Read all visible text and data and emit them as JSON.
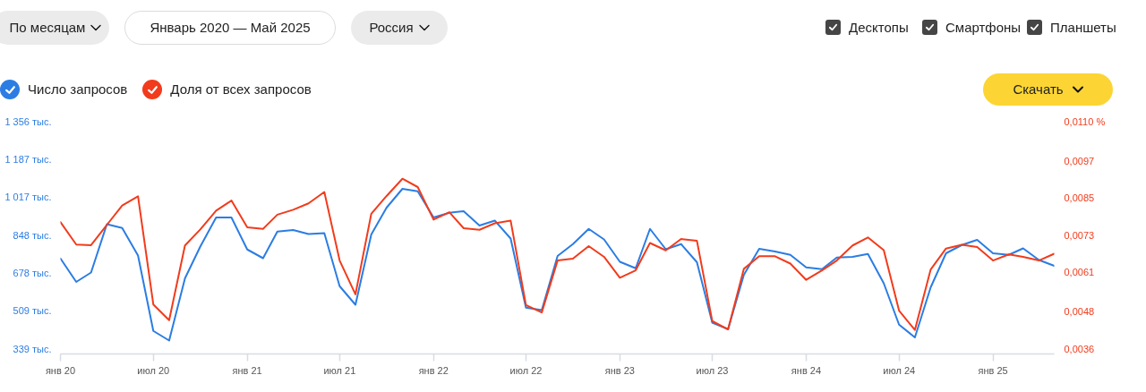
{
  "chart_data": {
    "type": "line",
    "x": [
      "2020-01",
      "2020-02",
      "2020-03",
      "2020-04",
      "2020-05",
      "2020-06",
      "2020-07",
      "2020-08",
      "2020-09",
      "2020-10",
      "2020-11",
      "2020-12",
      "2021-01",
      "2021-02",
      "2021-03",
      "2021-04",
      "2021-05",
      "2021-06",
      "2021-07",
      "2021-08",
      "2021-09",
      "2021-10",
      "2021-11",
      "2021-12",
      "2022-01",
      "2022-02",
      "2022-03",
      "2022-04",
      "2022-05",
      "2022-06",
      "2022-07",
      "2022-08",
      "2022-09",
      "2022-10",
      "2022-11",
      "2022-12",
      "2023-01",
      "2023-02",
      "2023-03",
      "2023-04",
      "2023-05",
      "2023-06",
      "2023-07",
      "2023-08",
      "2023-09",
      "2023-10",
      "2023-11",
      "2023-12",
      "2024-01",
      "2024-02",
      "2024-03",
      "2024-04",
      "2024-05",
      "2024-06",
      "2024-07",
      "2024-08",
      "2024-09",
      "2024-10",
      "2024-11",
      "2024-12",
      "2025-01",
      "2025-02",
      "2025-03",
      "2025-04",
      "2025-05"
    ],
    "series": [
      {
        "name": "Число запросов",
        "color": "#2b7de3",
        "values": [
          743,
          638,
          680,
          896,
          879,
          756,
          419,
          376,
          654,
          796,
          926,
          926,
          783,
          744,
          863,
          870,
          852,
          856,
          619,
          536,
          850,
          970,
          1054,
          1043,
          926,
          947,
          954,
          890,
          912,
          832,
          523,
          512,
          754,
          807,
          875,
          828,
          728,
          699,
          875,
          784,
          807,
          726,
          456,
          427,
          670,
          786,
          774,
          759,
          703,
          695,
          747,
          750,
          763,
          632,
          447,
          390,
          614,
          766,
          803,
          826,
          766,
          759,
          788,
          736,
          710
        ]
      },
      {
        "name": "Доля от всех запросов",
        "color": "#f23b1c",
        "axis": "y2",
        "values": [
          0.00772,
          0.00699,
          0.00697,
          0.00763,
          0.00826,
          0.00856,
          0.00504,
          0.00453,
          0.00696,
          0.00748,
          0.00809,
          0.00842,
          0.00755,
          0.0075,
          0.00796,
          0.00812,
          0.00833,
          0.0087,
          0.00647,
          0.00537,
          0.00799,
          0.00857,
          0.00913,
          0.00886,
          0.0078,
          0.00804,
          0.00752,
          0.00747,
          0.00768,
          0.00777,
          0.00502,
          0.00478,
          0.00647,
          0.00653,
          0.00694,
          0.00659,
          0.00591,
          0.00615,
          0.00704,
          0.0068,
          0.00717,
          0.00711,
          0.0045,
          0.00423,
          0.0062,
          0.00661,
          0.00661,
          0.00637,
          0.00584,
          0.00615,
          0.00647,
          0.00696,
          0.00722,
          0.00681,
          0.00484,
          0.00421,
          0.00618,
          0.00686,
          0.00698,
          0.00691,
          0.00647,
          0.00667,
          0.00659,
          0.00647,
          0.00669
        ]
      }
    ],
    "xlim": [
      "2020-01",
      "2025-05"
    ],
    "xticks": [
      {
        "value": "2020-01",
        "label": "янв 20"
      },
      {
        "value": "2020-07",
        "label": "июл 20"
      },
      {
        "value": "2021-01",
        "label": "янв 21"
      },
      {
        "value": "2021-07",
        "label": "июл 21"
      },
      {
        "value": "2022-01",
        "label": "янв 22"
      },
      {
        "value": "2022-07",
        "label": "июл 22"
      },
      {
        "value": "2023-01",
        "label": "янв 23"
      },
      {
        "value": "2023-07",
        "label": "июл 23"
      },
      {
        "value": "2024-01",
        "label": "янв 24"
      },
      {
        "value": "2024-07",
        "label": "июл 24"
      },
      {
        "value": "2025-01",
        "label": "янв 25"
      }
    ],
    "ylim": [
      316,
      1356
    ],
    "yticks": [
      {
        "value": 339,
        "label": "339 тыс."
      },
      {
        "value": 509,
        "label": "509 тыс."
      },
      {
        "value": 678,
        "label": "678 тыс."
      },
      {
        "value": 848,
        "label": "848 тыс."
      },
      {
        "value": 1017,
        "label": "1 017 тыс."
      },
      {
        "value": 1187,
        "label": "1 187 тыс."
      },
      {
        "value": 1356,
        "label": "1 356 тыс."
      }
    ],
    "y2lim": [
      0.00343,
      0.011
    ],
    "y2ticks": [
      {
        "value": 0.0036,
        "label": "0,0036"
      },
      {
        "value": 0.0048,
        "label": "0,0048"
      },
      {
        "value": 0.0061,
        "label": "0,0061"
      },
      {
        "value": 0.0073,
        "label": "0,0073"
      },
      {
        "value": 0.0085,
        "label": "0,0085"
      },
      {
        "value": 0.0097,
        "label": "0,0097"
      },
      {
        "value": 0.011,
        "label": "0,0110 %"
      }
    ],
    "legend": "top left",
    "annotations": [
      "По месяцам",
      "Январь 2020 — Май 2025",
      "Россия",
      "Десктопы",
      "Смартфоны",
      "Планшеты",
      "Скачать"
    ]
  }
}
